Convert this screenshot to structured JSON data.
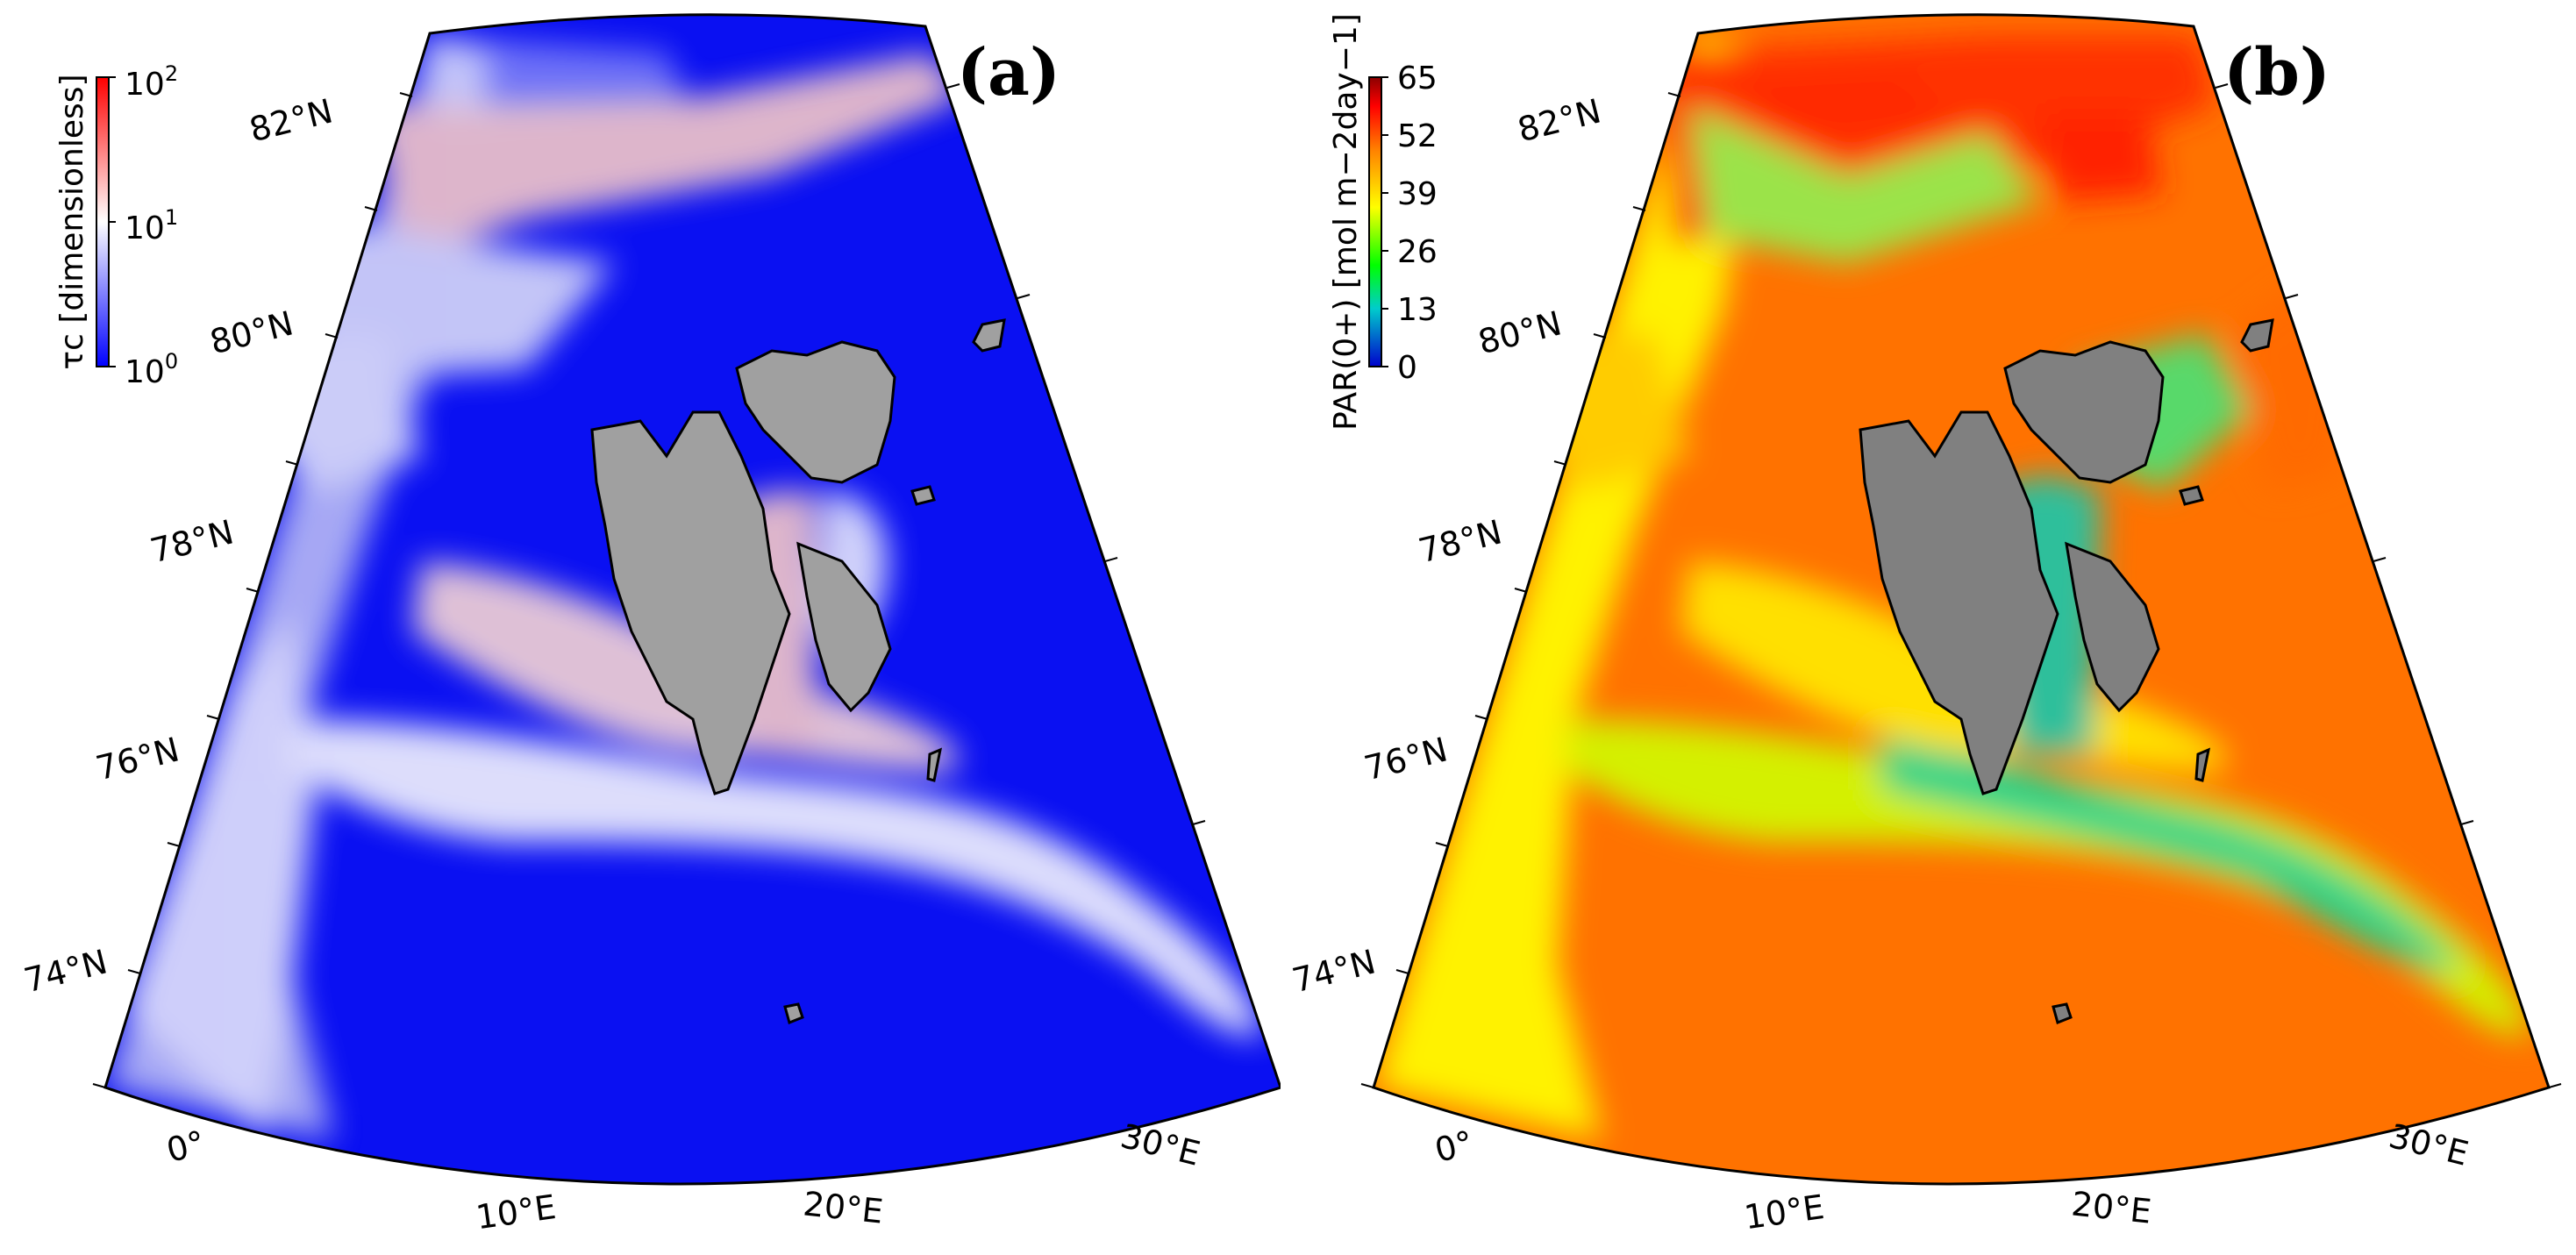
{
  "panels": [
    {
      "id": "a",
      "label": "(a)",
      "colorbar": {
        "label": "τc [dimensionless]",
        "ticks": [
          "10^0",
          "10^1",
          "10^2"
        ],
        "tick_display": [
          {
            "base": "10",
            "exp": "0"
          },
          {
            "base": "10",
            "exp": "1"
          },
          {
            "base": "10",
            "exp": "2"
          }
        ],
        "scale": "log",
        "range": [
          1,
          100
        ],
        "colors": [
          "#0000ff",
          "#ffffff",
          "#ff0000"
        ]
      }
    },
    {
      "id": "b",
      "label": "(b)",
      "colorbar": {
        "label": "PAR(0+) [mol m−2day−1]",
        "ticks": [
          "65",
          "52",
          "39",
          "26",
          "13",
          "0"
        ],
        "scale": "linear",
        "range": [
          0,
          65
        ],
        "colors": [
          "#0000cc",
          "#00cccc",
          "#00ff00",
          "#ffff00",
          "#ff8000",
          "#ff0000",
          "#8b0000"
        ]
      }
    }
  ],
  "lat_labels": [
    "82°N",
    "80°N",
    "78°N",
    "76°N",
    "74°N"
  ],
  "lon_labels": [
    "0°",
    "10°E",
    "20°E",
    "30°E"
  ],
  "land_color": "#a0a0a0"
}
